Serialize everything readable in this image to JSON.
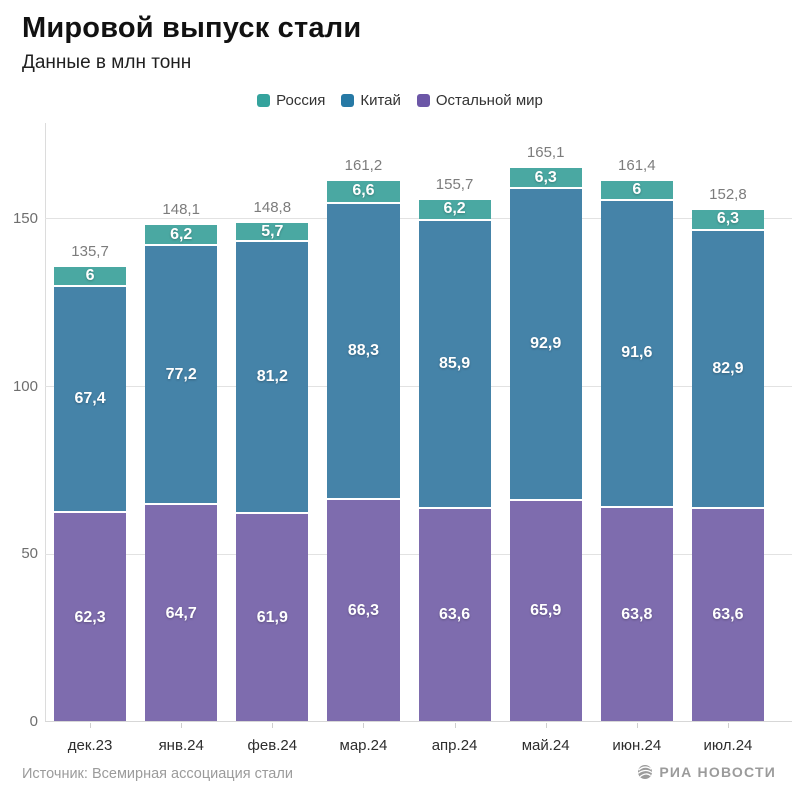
{
  "header": {
    "title": "Мировой выпуск стали",
    "subtitle": "Данные в млн тонн"
  },
  "legend": [
    {
      "label": "Россия",
      "color": "#35a39d"
    },
    {
      "label": "Китай",
      "color": "#2679a5"
    },
    {
      "label": "Остальной мир",
      "color": "#6c57a7"
    }
  ],
  "chart_data": {
    "type": "bar",
    "stacked": true,
    "title": "Мировой выпуск стали",
    "subtitle": "Данные в млн тонн",
    "unit": "млн тонн",
    "categories": [
      "дек.23",
      "янв.24",
      "фев.24",
      "мар.24",
      "апр.24",
      "май.24",
      "июн.24",
      "июл.24"
    ],
    "series": [
      {
        "name": "Россия",
        "color": "#4aa8a2",
        "values": [
          6,
          6.2,
          5.7,
          6.6,
          6.2,
          6.3,
          6,
          6.3
        ]
      },
      {
        "name": "Китай",
        "color": "#4583a8",
        "values": [
          67.4,
          77.2,
          81.2,
          88.3,
          85.9,
          92.9,
          91.6,
          82.9
        ]
      },
      {
        "name": "Остальной мир",
        "color": "#7e6cae",
        "values": [
          62.3,
          64.7,
          61.9,
          66.3,
          63.6,
          65.9,
          63.8,
          63.6
        ]
      }
    ],
    "totals": [
      135.7,
      148.1,
      148.8,
      161.2,
      155.7,
      165.1,
      161.4,
      152.8
    ],
    "yticks": [
      0,
      50,
      100,
      150
    ],
    "ylim": [
      0,
      178.6
    ],
    "grid": true,
    "legend_position": "top",
    "decimal_separator": ","
  },
  "footer": {
    "source": "Источник: Всемирная ассоциация стали",
    "brand": "РИА НОВОСТИ"
  }
}
